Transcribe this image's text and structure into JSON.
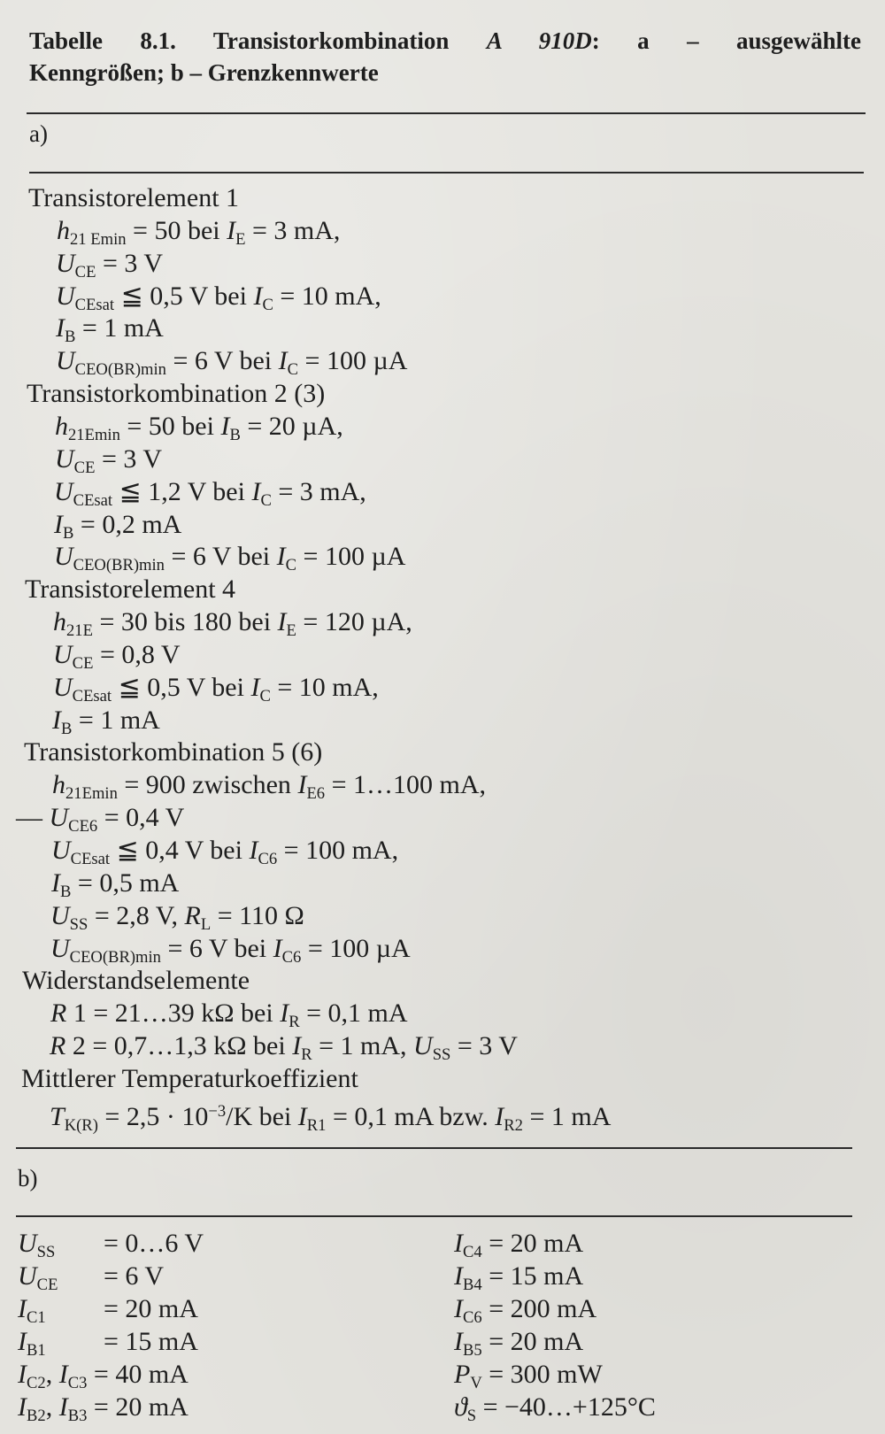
{
  "title": {
    "line1": [
      {
        "v": "Tabelle 8.1.  Transistorkombination  ",
        "f": "n"
      },
      {
        "v": "A 910D",
        "f": "i"
      },
      {
        "v": ": a  –  ausgewählte",
        "f": "n"
      }
    ],
    "line2": [
      {
        "v": "Kenngrößen; b – Grenzkennwerte",
        "f": "n"
      }
    ]
  },
  "section_a": {
    "label": "a)",
    "lines": [
      {
        "h": true,
        "segs": [
          {
            "v": "Transistorelement 1",
            "f": "n"
          }
        ]
      },
      {
        "segs": [
          {
            "v": "h",
            "f": "i"
          },
          {
            "v": "21 Emin",
            "f": "s"
          },
          {
            "v": " = 50 bei ",
            "f": "n"
          },
          {
            "v": "I",
            "f": "i"
          },
          {
            "v": "E",
            "f": "s"
          },
          {
            "v": " = 3 mA,",
            "f": "n"
          }
        ]
      },
      {
        "segs": [
          {
            "v": "U",
            "f": "i"
          },
          {
            "v": "CE",
            "f": "s"
          },
          {
            "v": " = 3 V",
            "f": "n"
          }
        ]
      },
      {
        "segs": [
          {
            "v": "U",
            "f": "i"
          },
          {
            "v": "CEsat",
            "f": "s"
          },
          {
            "v": " ≦ 0,5 V bei ",
            "f": "n"
          },
          {
            "v": "I",
            "f": "i"
          },
          {
            "v": "C",
            "f": "s"
          },
          {
            "v": " = 10 mA,",
            "f": "n"
          }
        ]
      },
      {
        "segs": [
          {
            "v": "I",
            "f": "i"
          },
          {
            "v": "B",
            "f": "s"
          },
          {
            "v": " = 1 mA",
            "f": "n"
          }
        ]
      },
      {
        "segs": [
          {
            "v": "U",
            "f": "i"
          },
          {
            "v": "CEO(BR)min",
            "f": "s"
          },
          {
            "v": " = 6 V bei ",
            "f": "n"
          },
          {
            "v": "I",
            "f": "i"
          },
          {
            "v": "C",
            "f": "s"
          },
          {
            "v": " = 100 µA",
            "f": "n"
          }
        ]
      },
      {
        "h": true,
        "segs": [
          {
            "v": "Transistorkombination 2 (3)",
            "f": "n"
          }
        ]
      },
      {
        "segs": [
          {
            "v": "h",
            "f": "i"
          },
          {
            "v": "21Emin",
            "f": "s"
          },
          {
            "v": " = 50 bei ",
            "f": "n"
          },
          {
            "v": "I",
            "f": "i"
          },
          {
            "v": "B",
            "f": "s"
          },
          {
            "v": " = 20 µA,",
            "f": "n"
          }
        ]
      },
      {
        "segs": [
          {
            "v": "U",
            "f": "i"
          },
          {
            "v": "CE",
            "f": "s"
          },
          {
            "v": " = 3 V",
            "f": "n"
          }
        ]
      },
      {
        "segs": [
          {
            "v": "U",
            "f": "i"
          },
          {
            "v": "CEsat",
            "f": "s"
          },
          {
            "v": " ≦ 1,2 V bei ",
            "f": "n"
          },
          {
            "v": "I",
            "f": "i"
          },
          {
            "v": "C",
            "f": "s"
          },
          {
            "v": " = 3 mA,",
            "f": "n"
          }
        ]
      },
      {
        "segs": [
          {
            "v": "I",
            "f": "i"
          },
          {
            "v": "B",
            "f": "s"
          },
          {
            "v": " = 0,2 mA",
            "f": "n"
          }
        ]
      },
      {
        "segs": [
          {
            "v": "U",
            "f": "i"
          },
          {
            "v": "CEO(BR)min",
            "f": "s"
          },
          {
            "v": " = 6 V bei ",
            "f": "n"
          },
          {
            "v": "I",
            "f": "i"
          },
          {
            "v": "C",
            "f": "s"
          },
          {
            "v": " = 100 µA",
            "f": "n"
          }
        ]
      },
      {
        "h": true,
        "segs": [
          {
            "v": "Transistorelement 4",
            "f": "n"
          }
        ]
      },
      {
        "segs": [
          {
            "v": "h",
            "f": "i"
          },
          {
            "v": "21E",
            "f": "s"
          },
          {
            "v": " = 30 bis 180 bei ",
            "f": "n"
          },
          {
            "v": "I",
            "f": "i"
          },
          {
            "v": "E",
            "f": "s"
          },
          {
            "v": " = 120 µA,",
            "f": "n"
          }
        ]
      },
      {
        "segs": [
          {
            "v": "U",
            "f": "i"
          },
          {
            "v": "CE",
            "f": "s"
          },
          {
            "v": " = 0,8 V",
            "f": "n"
          }
        ]
      },
      {
        "segs": [
          {
            "v": "U",
            "f": "i"
          },
          {
            "v": "CEsat",
            "f": "s"
          },
          {
            "v": " ≦ 0,5 V bei ",
            "f": "n"
          },
          {
            "v": "I",
            "f": "i"
          },
          {
            "v": "C",
            "f": "s"
          },
          {
            "v": " = 10 mA,",
            "f": "n"
          }
        ]
      },
      {
        "segs": [
          {
            "v": "I",
            "f": "i"
          },
          {
            "v": "B",
            "f": "s"
          },
          {
            "v": " = 1 mA",
            "f": "n"
          }
        ]
      },
      {
        "h": true,
        "segs": [
          {
            "v": "Transistorkombination 5 (6)",
            "f": "n"
          }
        ]
      },
      {
        "segs": [
          {
            "v": "h",
            "f": "i"
          },
          {
            "v": "21Emin",
            "f": "s"
          },
          {
            "v": " = 900 zwischen ",
            "f": "n"
          },
          {
            "v": "I",
            "f": "i"
          },
          {
            "v": "E6",
            "f": "s"
          },
          {
            "v": " = 1…100 mA,",
            "f": "n"
          }
        ]
      },
      {
        "dash": true,
        "segs": [
          {
            "v": "— ",
            "f": "n"
          },
          {
            "v": "U",
            "f": "i"
          },
          {
            "v": "CE6",
            "f": "s"
          },
          {
            "v": " = 0,4 V",
            "f": "n"
          }
        ]
      },
      {
        "segs": [
          {
            "v": "U",
            "f": "i"
          },
          {
            "v": "CEsat",
            "f": "s"
          },
          {
            "v": " ≦ 0,4 V bei ",
            "f": "n"
          },
          {
            "v": "I",
            "f": "i"
          },
          {
            "v": "C6",
            "f": "s"
          },
          {
            "v": " = 100 mA,",
            "f": "n"
          }
        ]
      },
      {
        "segs": [
          {
            "v": "I",
            "f": "i"
          },
          {
            "v": "B",
            "f": "s"
          },
          {
            "v": " = 0,5 mA",
            "f": "n"
          }
        ]
      },
      {
        "segs": [
          {
            "v": "U",
            "f": "i"
          },
          {
            "v": "SS",
            "f": "s"
          },
          {
            "v": " = 2,8 V, ",
            "f": "n"
          },
          {
            "v": "R",
            "f": "i"
          },
          {
            "v": "L",
            "f": "s"
          },
          {
            "v": " = 110 Ω",
            "f": "n"
          }
        ]
      },
      {
        "segs": [
          {
            "v": "U",
            "f": "i"
          },
          {
            "v": "CEO(BR)min",
            "f": "s"
          },
          {
            "v": " = 6 V bei ",
            "f": "n"
          },
          {
            "v": "I",
            "f": "i"
          },
          {
            "v": "C6",
            "f": "s"
          },
          {
            "v": " = 100 µA",
            "f": "n"
          }
        ]
      },
      {
        "h": true,
        "segs": [
          {
            "v": "Widerstandselemente",
            "f": "n"
          }
        ]
      },
      {
        "segs": [
          {
            "v": "R",
            "f": "i"
          },
          {
            "v": " 1 = 21…39 kΩ bei ",
            "f": "n"
          },
          {
            "v": "I",
            "f": "i"
          },
          {
            "v": "R",
            "f": "s"
          },
          {
            "v": " = 0,1 mA",
            "f": "n"
          }
        ]
      },
      {
        "segs": [
          {
            "v": "R",
            "f": "i"
          },
          {
            "v": " 2 = 0,7…1,3 kΩ bei ",
            "f": "n"
          },
          {
            "v": "I",
            "f": "i"
          },
          {
            "v": "R",
            "f": "s"
          },
          {
            "v": " = 1 mA, ",
            "f": "n"
          },
          {
            "v": "U",
            "f": "i"
          },
          {
            "v": "SS",
            "f": "s"
          },
          {
            "v": " = 3 V",
            "f": "n"
          }
        ]
      },
      {
        "h": true,
        "segs": [
          {
            "v": "Mittlerer Temperaturkoeffizient",
            "f": "n"
          }
        ]
      },
      {
        "segs": [
          {
            "v": "T",
            "f": "i"
          },
          {
            "v": "K(R)",
            "f": "s"
          },
          {
            "v": " = 2,5 · 10",
            "f": "n"
          },
          {
            "v": "−3",
            "f": "p"
          },
          {
            "v": "/K bei ",
            "f": "n"
          },
          {
            "v": "I",
            "f": "i"
          },
          {
            "v": "R1",
            "f": "s"
          },
          {
            "v": " = 0,1 mA bzw. ",
            "f": "n"
          },
          {
            "v": "I",
            "f": "i"
          },
          {
            "v": "R2",
            "f": "s"
          },
          {
            "v": " = 1 mA",
            "f": "n"
          }
        ]
      }
    ]
  },
  "section_b": {
    "label": "b)",
    "left": [
      {
        "sym": [
          {
            "v": "U",
            "f": "i"
          },
          {
            "v": "SS",
            "f": "s"
          }
        ],
        "val": [
          {
            "v": "= 0…6 V",
            "f": "n"
          }
        ]
      },
      {
        "sym": [
          {
            "v": "U",
            "f": "i"
          },
          {
            "v": "CE",
            "f": "s"
          }
        ],
        "val": [
          {
            "v": "= 6 V",
            "f": "n"
          }
        ]
      },
      {
        "sym": [
          {
            "v": "I",
            "f": "i"
          },
          {
            "v": "C1",
            "f": "s"
          }
        ],
        "val": [
          {
            "v": "= 20 mA",
            "f": "n"
          }
        ]
      },
      {
        "sym": [
          {
            "v": "I",
            "f": "i"
          },
          {
            "v": "B1",
            "f": "s"
          }
        ],
        "val": [
          {
            "v": "= 15 mA",
            "f": "n"
          }
        ]
      },
      {
        "sym": [
          {
            "v": "I",
            "f": "i"
          },
          {
            "v": "C2",
            "f": "s"
          },
          {
            "v": ", ",
            "f": "n"
          },
          {
            "v": "I",
            "f": "i"
          },
          {
            "v": "C3",
            "f": "s"
          },
          {
            "v": " = 40 mA",
            "f": "n"
          }
        ],
        "val": []
      },
      {
        "sym": [
          {
            "v": "I",
            "f": "i"
          },
          {
            "v": "B2",
            "f": "s"
          },
          {
            "v": ", ",
            "f": "n"
          },
          {
            "v": "I",
            "f": "i"
          },
          {
            "v": "B3",
            "f": "s"
          },
          {
            "v": " = 20 mA",
            "f": "n"
          }
        ],
        "val": []
      }
    ],
    "right": [
      {
        "sym": [
          {
            "v": "I",
            "f": "i"
          },
          {
            "v": "C4",
            "f": "s"
          },
          {
            "v": " =   20 mA",
            "f": "n"
          }
        ],
        "val": []
      },
      {
        "sym": [
          {
            "v": "I",
            "f": "i"
          },
          {
            "v": "B4",
            "f": "s"
          },
          {
            "v": " =   15 mA",
            "f": "n"
          }
        ],
        "val": []
      },
      {
        "sym": [
          {
            "v": "I",
            "f": "i"
          },
          {
            "v": "C6",
            "f": "s"
          },
          {
            "v": " = 200 mA",
            "f": "n"
          }
        ],
        "val": []
      },
      {
        "sym": [
          {
            "v": "I",
            "f": "i"
          },
          {
            "v": "B5",
            "f": "s"
          },
          {
            "v": " =   20 mA",
            "f": "n"
          }
        ],
        "val": []
      },
      {
        "sym": [
          {
            "v": "P",
            "f": "i"
          },
          {
            "v": "V",
            "f": "s"
          },
          {
            "v": " = 300 mW",
            "f": "n"
          }
        ],
        "val": []
      },
      {
        "sym": [
          {
            "v": "ϑ",
            "f": "i"
          },
          {
            "v": "S",
            "f": "s"
          },
          {
            "v": "  = −40…+125°C",
            "f": "n"
          }
        ],
        "val": []
      }
    ]
  }
}
